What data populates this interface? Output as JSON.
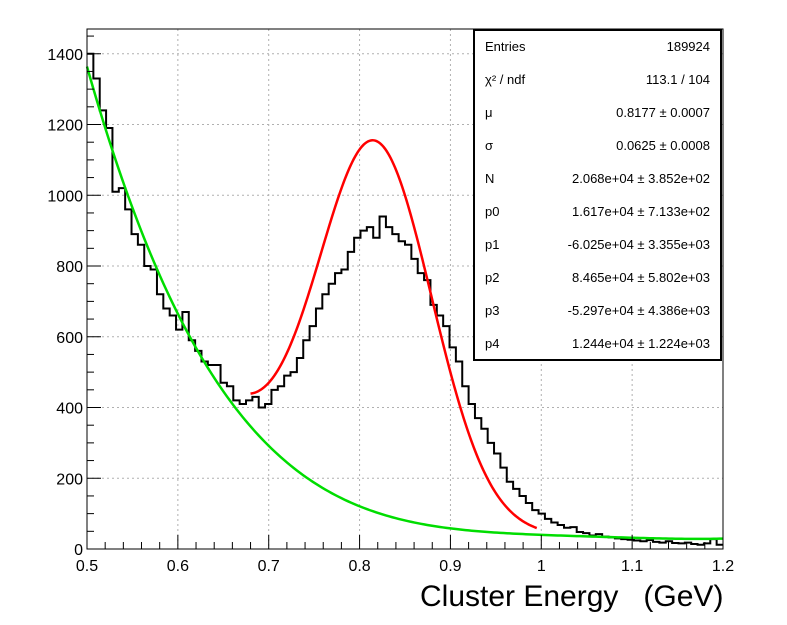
{
  "chart_data": {
    "type": "line",
    "xlabel": "Cluster Energy   (GeV)",
    "ylabel": "",
    "xlim": [
      0.5,
      1.2
    ],
    "ylim": [
      0,
      1470
    ],
    "x_ticks": [
      "0.5",
      "0.6",
      "0.7",
      "0.8",
      "0.9",
      "1",
      "1.1",
      "1.2"
    ],
    "y_ticks": [
      "0",
      "200",
      "400",
      "600",
      "800",
      "1000",
      "1200",
      "1400"
    ],
    "grid": true,
    "bin_width": 0.007,
    "series": [
      {
        "name": "",
        "kind": "histogram",
        "color": "#000000",
        "bin_start": 0.5,
        "values": [
          1400,
          1330,
          1240,
          1190,
          1010,
          1020,
          960,
          890,
          860,
          800,
          790,
          720,
          680,
          660,
          620,
          670,
          590,
          560,
          530,
          520,
          520,
          470,
          460,
          420,
          410,
          420,
          430,
          400,
          410,
          450,
          460,
          490,
          500,
          540,
          590,
          630,
          680,
          720,
          750,
          780,
          790,
          840,
          880,
          900,
          910,
          880,
          940,
          910,
          890,
          870,
          860,
          820,
          780,
          760,
          690,
          660,
          630,
          570,
          530,
          460,
          410,
          370,
          340,
          300,
          270,
          230,
          190,
          170,
          150,
          130,
          110,
          100,
          85,
          75,
          68,
          60,
          62,
          48,
          45,
          38,
          42,
          35,
          33,
          30,
          28,
          26,
          24,
          22,
          25,
          20,
          18,
          22,
          17,
          16,
          18,
          14,
          12,
          16,
          28,
          12
        ]
      },
      {
        "name": "",
        "kind": "fit-total",
        "color": "#ff0000",
        "range": [
          0.68,
          0.995
        ]
      },
      {
        "name": "",
        "kind": "fit-background",
        "color": "#00dd00",
        "range": [
          0.5,
          1.2
        ]
      }
    ],
    "fit": {
      "mu": 0.8177,
      "sigma": 0.0625,
      "N": 20680,
      "p0": 16170,
      "p1": -60250,
      "p2": 84650,
      "p3": -52970,
      "p4": 12440
    }
  },
  "stats": {
    "rows": [
      {
        "name": "Entries",
        "value": "189924"
      },
      {
        "name": "χ² / ndf",
        "value": "113.1 / 104"
      },
      {
        "name": "μ",
        "value": "0.8177 ± 0.0007"
      },
      {
        "name": "σ",
        "value": "0.0625 ± 0.0008"
      },
      {
        "name": "N",
        "value": "2.068e+04 ± 3.852e+02"
      },
      {
        "name": "p0",
        "value": "1.617e+04 ± 7.133e+02"
      },
      {
        "name": "p1",
        "value": "-6.025e+04 ± 3.355e+03"
      },
      {
        "name": "p2",
        "value": "8.465e+04 ± 5.802e+03"
      },
      {
        "name": "p3",
        "value": "-5.297e+04 ± 4.386e+03"
      },
      {
        "name": "p4",
        "value": "1.244e+04 ± 1.224e+03"
      }
    ]
  }
}
